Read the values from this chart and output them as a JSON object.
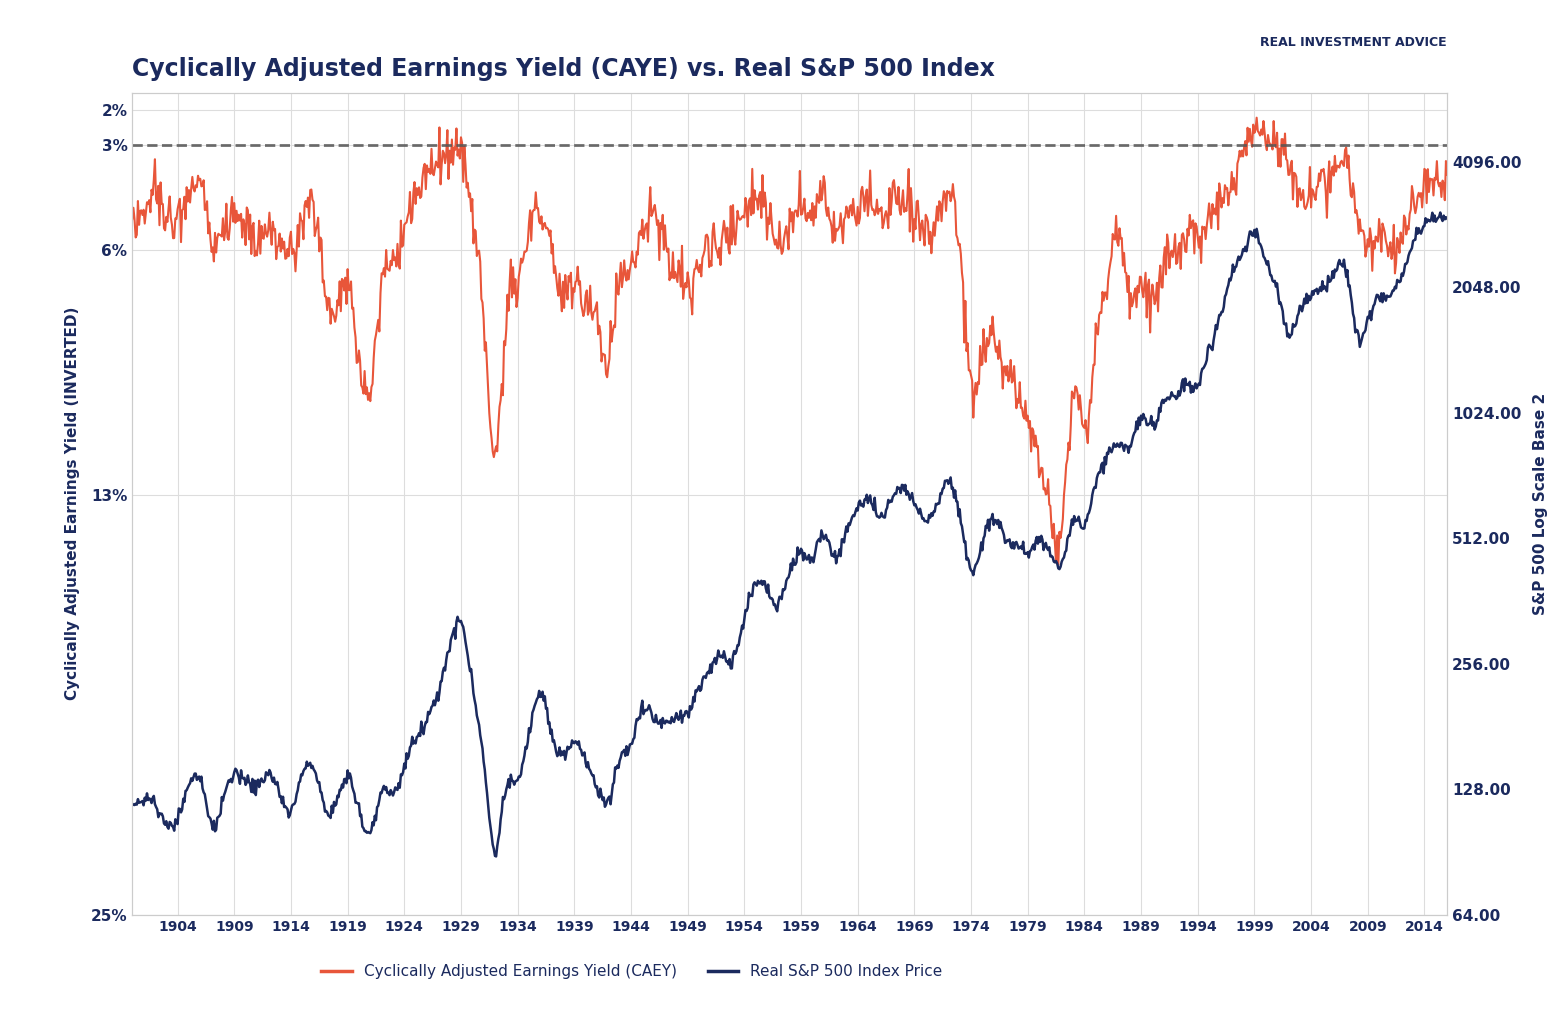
{
  "title": "Cyclically Adjusted Earnings Yield (CAYE) vs. Real S&P 500 Index",
  "xlabel_ticks": [
    1904,
    1909,
    1914,
    1919,
    1924,
    1929,
    1934,
    1939,
    1944,
    1949,
    1954,
    1959,
    1964,
    1969,
    1974,
    1979,
    1984,
    1989,
    1994,
    1999,
    2004,
    2009,
    2014
  ],
  "left_yticks": [
    2,
    3,
    6,
    13,
    25
  ],
  "left_ylabels": [
    "2%",
    "3%",
    "6%",
    "13%",
    "25%"
  ],
  "right_yticks": [
    64,
    128,
    256,
    512,
    1024,
    2048,
    4096
  ],
  "right_ylabels": [
    "64.00",
    "128.00",
    "256.00",
    "512.00",
    "1024.00",
    "2048.00",
    "4096.00"
  ],
  "ylabel_left": "Cyclically Adjusted Earnings Yield (INVERTED)",
  "ylabel_right": "S&P 500 Log Scale Base 2",
  "legend": [
    "Cyclically Adjusted Earnings Yield (CAEY)",
    "Real S&P 500 Index Price"
  ],
  "line_colors": [
    "#e8563a",
    "#1b2a5e"
  ],
  "dashed_line_y": 3.0,
  "dashed_line_color": "#555555",
  "background_color": "#ffffff",
  "grid_color": "#dddddd",
  "title_color": "#1b2a5e",
  "axis_color": "#1b2a5e",
  "caey_keypoints": [
    [
      1900,
      4.5
    ],
    [
      1901,
      4.8
    ],
    [
      1902,
      4.3
    ],
    [
      1903,
      5.0
    ],
    [
      1904,
      5.2
    ],
    [
      1905,
      4.6
    ],
    [
      1906,
      4.2
    ],
    [
      1907,
      5.8
    ],
    [
      1908,
      5.5
    ],
    [
      1909,
      4.8
    ],
    [
      1910,
      5.2
    ],
    [
      1911,
      5.5
    ],
    [
      1912,
      5.3
    ],
    [
      1913,
      5.8
    ],
    [
      1914,
      6.0
    ],
    [
      1915,
      5.2
    ],
    [
      1916,
      4.8
    ],
    [
      1917,
      7.0
    ],
    [
      1918,
      8.0
    ],
    [
      1919,
      7.0
    ],
    [
      1920,
      9.0
    ],
    [
      1921,
      10.0
    ],
    [
      1922,
      7.0
    ],
    [
      1923,
      6.5
    ],
    [
      1924,
      5.5
    ],
    [
      1925,
      4.5
    ],
    [
      1926,
      4.0
    ],
    [
      1927,
      3.5
    ],
    [
      1928,
      3.2
    ],
    [
      1929,
      3.0
    ],
    [
      1930,
      5.0
    ],
    [
      1931,
      8.0
    ],
    [
      1932,
      12.0
    ],
    [
      1933,
      8.0
    ],
    [
      1934,
      7.0
    ],
    [
      1935,
      5.5
    ],
    [
      1936,
      5.0
    ],
    [
      1937,
      6.0
    ],
    [
      1938,
      7.5
    ],
    [
      1939,
      7.0
    ],
    [
      1940,
      7.5
    ],
    [
      1941,
      8.0
    ],
    [
      1942,
      9.0
    ],
    [
      1943,
      7.0
    ],
    [
      1944,
      6.5
    ],
    [
      1945,
      5.5
    ],
    [
      1946,
      5.0
    ],
    [
      1947,
      6.0
    ],
    [
      1948,
      6.5
    ],
    [
      1949,
      7.0
    ],
    [
      1950,
      6.5
    ],
    [
      1951,
      6.0
    ],
    [
      1952,
      5.8
    ],
    [
      1953,
      5.5
    ],
    [
      1954,
      5.0
    ],
    [
      1955,
      4.5
    ],
    [
      1956,
      5.0
    ],
    [
      1957,
      5.8
    ],
    [
      1958,
      5.5
    ],
    [
      1959,
      4.8
    ],
    [
      1960,
      5.2
    ],
    [
      1961,
      4.5
    ],
    [
      1962,
      5.5
    ],
    [
      1963,
      5.0
    ],
    [
      1964,
      4.8
    ],
    [
      1965,
      4.5
    ],
    [
      1966,
      5.2
    ],
    [
      1967,
      4.8
    ],
    [
      1968,
      4.5
    ],
    [
      1969,
      5.0
    ],
    [
      1970,
      5.5
    ],
    [
      1971,
      5.0
    ],
    [
      1972,
      4.5
    ],
    [
      1973,
      6.0
    ],
    [
      1974,
      10.0
    ],
    [
      1975,
      9.0
    ],
    [
      1976,
      8.5
    ],
    [
      1977,
      9.5
    ],
    [
      1978,
      10.0
    ],
    [
      1979,
      11.0
    ],
    [
      1980,
      12.0
    ],
    [
      1981,
      13.5
    ],
    [
      1982,
      14.0
    ],
    [
      1983,
      10.0
    ],
    [
      1984,
      11.0
    ],
    [
      1985,
      9.0
    ],
    [
      1986,
      7.0
    ],
    [
      1987,
      5.5
    ],
    [
      1988,
      7.5
    ],
    [
      1989,
      7.0
    ],
    [
      1990,
      7.5
    ],
    [
      1991,
      6.5
    ],
    [
      1992,
      6.0
    ],
    [
      1993,
      5.5
    ],
    [
      1994,
      5.5
    ],
    [
      1995,
      5.0
    ],
    [
      1996,
      4.5
    ],
    [
      1997,
      4.0
    ],
    [
      1998,
      3.2
    ],
    [
      1999,
      2.5
    ],
    [
      2000,
      2.8
    ],
    [
      2001,
      3.0
    ],
    [
      2002,
      3.5
    ],
    [
      2003,
      4.5
    ],
    [
      2004,
      4.2
    ],
    [
      2005,
      4.0
    ],
    [
      2006,
      3.8
    ],
    [
      2007,
      3.5
    ],
    [
      2008,
      5.0
    ],
    [
      2009,
      6.0
    ],
    [
      2010,
      5.5
    ],
    [
      2011,
      5.8
    ],
    [
      2012,
      5.5
    ],
    [
      2013,
      4.8
    ],
    [
      2014,
      4.2
    ],
    [
      2015,
      4.0
    ],
    [
      2016,
      4.0
    ]
  ],
  "sp500_keypoints": [
    [
      1900,
      115
    ],
    [
      1901,
      120
    ],
    [
      1902,
      118
    ],
    [
      1903,
      105
    ],
    [
      1904,
      110
    ],
    [
      1905,
      130
    ],
    [
      1906,
      135
    ],
    [
      1907,
      105
    ],
    [
      1908,
      120
    ],
    [
      1909,
      140
    ],
    [
      1910,
      135
    ],
    [
      1911,
      130
    ],
    [
      1912,
      140
    ],
    [
      1913,
      125
    ],
    [
      1914,
      115
    ],
    [
      1915,
      140
    ],
    [
      1916,
      145
    ],
    [
      1917,
      115
    ],
    [
      1918,
      120
    ],
    [
      1919,
      135
    ],
    [
      1920,
      115
    ],
    [
      1921,
      100
    ],
    [
      1922,
      125
    ],
    [
      1923,
      125
    ],
    [
      1924,
      145
    ],
    [
      1925,
      170
    ],
    [
      1926,
      190
    ],
    [
      1927,
      220
    ],
    [
      1928,
      280
    ],
    [
      1929,
      320
    ],
    [
      1930,
      230
    ],
    [
      1931,
      150
    ],
    [
      1932,
      90
    ],
    [
      1933,
      130
    ],
    [
      1934,
      135
    ],
    [
      1935,
      175
    ],
    [
      1936,
      215
    ],
    [
      1937,
      175
    ],
    [
      1938,
      155
    ],
    [
      1939,
      165
    ],
    [
      1940,
      150
    ],
    [
      1941,
      130
    ],
    [
      1942,
      120
    ],
    [
      1943,
      150
    ],
    [
      1944,
      165
    ],
    [
      1945,
      200
    ],
    [
      1946,
      190
    ],
    [
      1947,
      185
    ],
    [
      1948,
      190
    ],
    [
      1949,
      195
    ],
    [
      1950,
      225
    ],
    [
      1951,
      250
    ],
    [
      1952,
      265
    ],
    [
      1953,
      260
    ],
    [
      1954,
      330
    ],
    [
      1955,
      400
    ],
    [
      1956,
      390
    ],
    [
      1957,
      350
    ],
    [
      1958,
      430
    ],
    [
      1959,
      470
    ],
    [
      1960,
      460
    ],
    [
      1961,
      520
    ],
    [
      1962,
      460
    ],
    [
      1963,
      540
    ],
    [
      1964,
      600
    ],
    [
      1965,
      640
    ],
    [
      1966,
      580
    ],
    [
      1967,
      640
    ],
    [
      1968,
      680
    ],
    [
      1969,
      620
    ],
    [
      1970,
      570
    ],
    [
      1971,
      620
    ],
    [
      1972,
      700
    ],
    [
      1973,
      580
    ],
    [
      1974,
      430
    ],
    [
      1975,
      500
    ],
    [
      1976,
      570
    ],
    [
      1977,
      510
    ],
    [
      1978,
      490
    ],
    [
      1979,
      480
    ],
    [
      1980,
      500
    ],
    [
      1981,
      470
    ],
    [
      1982,
      450
    ],
    [
      1983,
      560
    ],
    [
      1984,
      560
    ],
    [
      1985,
      690
    ],
    [
      1986,
      810
    ],
    [
      1987,
      850
    ],
    [
      1988,
      850
    ],
    [
      1989,
      1000
    ],
    [
      1990,
      950
    ],
    [
      1991,
      1080
    ],
    [
      1992,
      1120
    ],
    [
      1993,
      1200
    ],
    [
      1994,
      1180
    ],
    [
      1995,
      1450
    ],
    [
      1996,
      1750
    ],
    [
      1997,
      2200
    ],
    [
      1998,
      2500
    ],
    [
      1999,
      2800
    ],
    [
      2000,
      2400
    ],
    [
      2001,
      2000
    ],
    [
      2002,
      1600
    ],
    [
      2003,
      1800
    ],
    [
      2004,
      1950
    ],
    [
      2005,
      2050
    ],
    [
      2006,
      2200
    ],
    [
      2007,
      2300
    ],
    [
      2008,
      1600
    ],
    [
      2009,
      1700
    ],
    [
      2010,
      1950
    ],
    [
      2011,
      1950
    ],
    [
      2012,
      2200
    ],
    [
      2013,
      2600
    ],
    [
      2014,
      2900
    ],
    [
      2015,
      3000
    ],
    [
      2016,
      3000
    ]
  ]
}
